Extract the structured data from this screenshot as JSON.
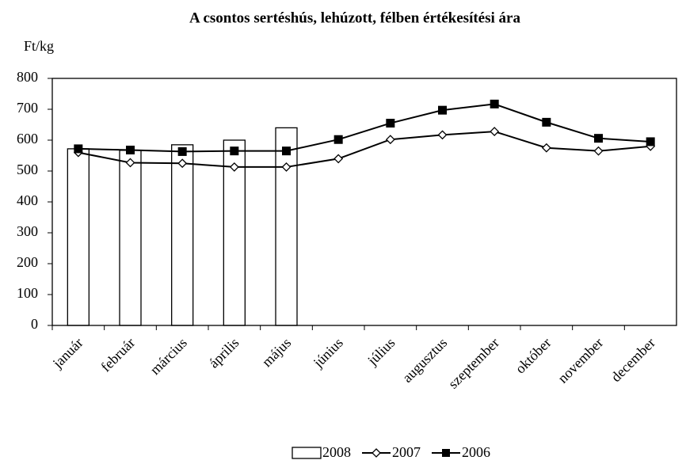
{
  "chart_data": {
    "type": "bar",
    "title": "A csontos sertéshús, lehúzott, félben értékesítési ára",
    "y_label": "Ft/kg",
    "categories": [
      "január",
      "február",
      "március",
      "április",
      "május",
      "június",
      "július",
      "augusztus",
      "szeptember",
      "október",
      "november",
      "december"
    ],
    "series": [
      {
        "name": "2008",
        "type": "bar",
        "color": "#ffffff",
        "values": [
          572,
          567,
          585,
          600,
          640,
          null,
          null,
          null,
          null,
          null,
          null,
          null
        ]
      },
      {
        "name": "2007",
        "type": "line",
        "marker": "diamond",
        "color": "#000000",
        "values": [
          560,
          527,
          525,
          513,
          513,
          540,
          602,
          617,
          628,
          575,
          565,
          580
        ]
      },
      {
        "name": "2006",
        "type": "line",
        "marker": "square",
        "color": "#000000",
        "values": [
          572,
          568,
          563,
          565,
          565,
          602,
          655,
          697,
          717,
          658,
          606,
          595
        ]
      }
    ],
    "ylim": [
      0,
      800
    ],
    "yticks": [
      0,
      100,
      200,
      300,
      400,
      500,
      600,
      700,
      800
    ],
    "grid": false,
    "legend": "bottom"
  }
}
